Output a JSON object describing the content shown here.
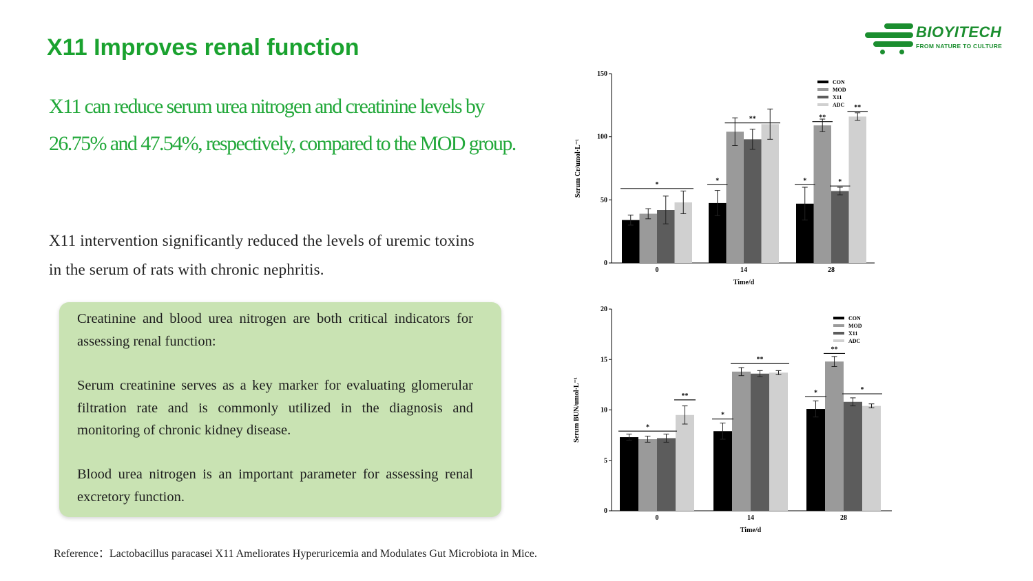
{
  "slide": {
    "title": "X11 Improves renal function",
    "lead": "X11 can reduce serum urea nitrogen and creatinine levels by 26.75% and 47.54%, respectively, compared to the MOD group.",
    "body": "X11 intervention significantly reduced the levels of uremic toxins in the serum of rats with chronic nephritis.",
    "info_box": {
      "p1": "Creatinine and blood urea nitrogen are both critical indicators for assessing renal function:",
      "p2": "Serum creatinine serves as a key marker for evaluating glomerular filtration rate and is commonly utilized in the diagnosis and monitoring of chronic kidney disease.",
      "p3": "Blood urea nitrogen is an important parameter for assessing renal excretory function."
    },
    "reference": "Reference：Lactobacillus paracasei X11 Ameliorates Hyperuricemia and Modulates Gut Microbiota in Mice."
  },
  "logo": {
    "name": "BIOYITECH",
    "tagline": "FROM NATURE TO CULTURE",
    "color": "#1b8e2f"
  },
  "colors": {
    "title": "#1aa22f",
    "lead": "#22a83a",
    "box_bg": "#c9e3b3"
  },
  "chart_data": [
    {
      "type": "bar",
      "ylabel": "Serum Cr/umol·L⁻¹",
      "xlabel": "Time/d",
      "ylim": [
        0,
        150
      ],
      "yticks": [
        0,
        50,
        100,
        150
      ],
      "legend_position": "top-right",
      "categories": [
        "0",
        "14",
        "28"
      ],
      "series": [
        {
          "name": "CON",
          "color": "#000000",
          "values": [
            34,
            47.5,
            47
          ],
          "errors": [
            4,
            10,
            13
          ]
        },
        {
          "name": "MOD",
          "color": "#9a9a9a",
          "values": [
            39,
            104,
            109
          ],
          "errors": [
            4,
            11,
            5
          ]
        },
        {
          "name": "X11",
          "color": "#5c5c5c",
          "values": [
            42,
            98,
            57
          ],
          "errors": [
            11,
            8,
            3
          ]
        },
        {
          "name": "ADC",
          "color": "#d0d0d0",
          "values": [
            48,
            110,
            116
          ],
          "errors": [
            9,
            12,
            3
          ]
        }
      ],
      "annotations": [
        {
          "text": "*",
          "category": 0,
          "from_series": 0,
          "to_series": 3,
          "y": 59
        },
        {
          "text": "*",
          "category": 1,
          "from_series": 0,
          "to_series": 0,
          "y": 62
        },
        {
          "text": "**",
          "category": 1,
          "from_series": 1,
          "to_series": 3,
          "y": 111
        },
        {
          "text": "*",
          "category": 2,
          "from_series": 0,
          "to_series": 0,
          "y": 62
        },
        {
          "text": "**",
          "category": 2,
          "from_series": 1,
          "to_series": 1,
          "y": 112
        },
        {
          "text": "*",
          "category": 2,
          "from_series": 2,
          "to_series": 2,
          "y": 61
        },
        {
          "text": "**",
          "category": 2,
          "from_series": 3,
          "to_series": 3,
          "y": 120
        }
      ]
    },
    {
      "type": "bar",
      "ylabel": "Serum BUN/umol·L⁻¹",
      "xlabel": "Time/d",
      "ylim": [
        0,
        20
      ],
      "yticks": [
        0,
        5,
        10,
        15,
        20
      ],
      "legend_position": "top-right",
      "categories": [
        "0",
        "14",
        "28"
      ],
      "series": [
        {
          "name": "CON",
          "color": "#000000",
          "values": [
            7.3,
            7.9,
            10.1
          ],
          "errors": [
            0.3,
            0.8,
            0.8
          ]
        },
        {
          "name": "MOD",
          "color": "#9a9a9a",
          "values": [
            7.1,
            13.8,
            14.8
          ],
          "errors": [
            0.3,
            0.4,
            0.5
          ]
        },
        {
          "name": "X11",
          "color": "#5c5c5c",
          "values": [
            7.2,
            13.6,
            10.8
          ],
          "errors": [
            0.4,
            0.3,
            0.4
          ]
        },
        {
          "name": "ADC",
          "color": "#d0d0d0",
          "values": [
            9.5,
            13.7,
            10.4
          ],
          "errors": [
            0.9,
            0.2,
            0.2
          ]
        }
      ],
      "annotations": [
        {
          "text": "*",
          "category": 0,
          "from_series": 0,
          "to_series": 2,
          "y": 7.9
        },
        {
          "text": "**",
          "category": 0,
          "from_series": 3,
          "to_series": 3,
          "y": 11
        },
        {
          "text": "*",
          "category": 1,
          "from_series": 0,
          "to_series": 0,
          "y": 9.1
        },
        {
          "text": "**",
          "category": 1,
          "from_series": 1,
          "to_series": 3,
          "y": 14.6
        },
        {
          "text": "*",
          "category": 2,
          "from_series": 0,
          "to_series": 0,
          "y": 11.3
        },
        {
          "text": "**",
          "category": 2,
          "from_series": 1,
          "to_series": 1,
          "y": 15.6
        },
        {
          "text": "*",
          "category": 2,
          "from_series": 2,
          "to_series": 3,
          "y": 11.6
        }
      ]
    }
  ]
}
